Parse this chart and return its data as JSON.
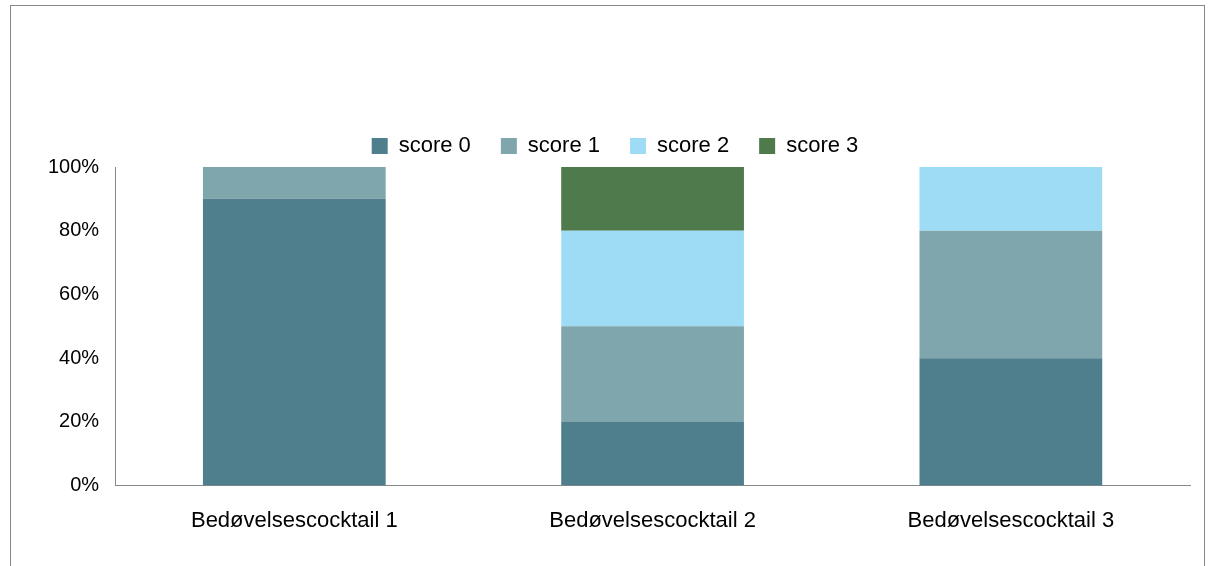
{
  "chart_data": {
    "type": "bar",
    "stacked": true,
    "legend": "top",
    "categories": [
      "Bedøvelsescocktail 1",
      "Bedøvelsescocktail 2",
      "Bedøvelsescocktail 3"
    ],
    "series": [
      {
        "name": "score 0",
        "color": "#4f7f8c",
        "values": [
          90,
          20,
          40
        ]
      },
      {
        "name": "score 1",
        "color": "#7fa5ad",
        "values": [
          10,
          30,
          40
        ]
      },
      {
        "name": "score 2",
        "color": "#9edcf5",
        "values": [
          0,
          30,
          20
        ]
      },
      {
        "name": "score 3",
        "color": "#4e7a4c",
        "values": [
          0,
          20,
          0
        ]
      }
    ],
    "ylim": [
      0,
      100
    ],
    "yticks": [
      {
        "value": 0,
        "label": "0%"
      },
      {
        "value": 20,
        "label": "20%"
      },
      {
        "value": 40,
        "label": "40%"
      },
      {
        "value": 60,
        "label": "60%"
      },
      {
        "value": 80,
        "label": "80%"
      },
      {
        "value": 100,
        "label": "100%"
      }
    ]
  }
}
